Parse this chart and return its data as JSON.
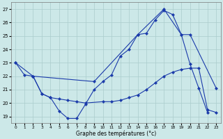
{
  "xlabel": "Graphe des températures (°c)",
  "background_color": "#cce8e8",
  "grid_color": "#aacccc",
  "line_color": "#1a3aaa",
  "xlim": [
    -0.5,
    23.5
  ],
  "ylim": [
    18.5,
    27.5
  ],
  "yticks": [
    19,
    20,
    21,
    22,
    23,
    24,
    25,
    26,
    27
  ],
  "xticks": [
    0,
    1,
    2,
    3,
    4,
    5,
    6,
    7,
    8,
    9,
    10,
    11,
    12,
    13,
    14,
    15,
    16,
    17,
    18,
    19,
    20,
    21,
    22,
    23
  ],
  "s1x": [
    0,
    1,
    2,
    3,
    4,
    5,
    6,
    7,
    8,
    9,
    10,
    11,
    12,
    13,
    14,
    15,
    16,
    17,
    18,
    19,
    20,
    21,
    22
  ],
  "s1y": [
    23.0,
    22.1,
    22.0,
    20.7,
    20.4,
    19.4,
    18.85,
    18.85,
    19.9,
    21.0,
    21.6,
    22.1,
    23.5,
    24.0,
    25.1,
    25.2,
    26.2,
    26.9,
    26.6,
    25.1,
    22.9,
    21.1,
    19.3
  ],
  "s2x": [
    2,
    3,
    4,
    5,
    6,
    7,
    8,
    10,
    11,
    12,
    13,
    14,
    15,
    16,
    17,
    18,
    19,
    20,
    21,
    22,
    23
  ],
  "s2y": [
    22.0,
    20.7,
    20.4,
    20.3,
    20.2,
    20.1,
    20.0,
    20.1,
    20.1,
    20.2,
    20.4,
    20.6,
    21.0,
    21.5,
    22.0,
    22.3,
    22.5,
    22.6,
    22.6,
    19.5,
    19.3
  ],
  "s3x": [
    0,
    2,
    9,
    14,
    17,
    19,
    20,
    23
  ],
  "s3y": [
    23.0,
    22.0,
    21.6,
    25.1,
    27.0,
    25.1,
    25.1,
    21.1
  ]
}
